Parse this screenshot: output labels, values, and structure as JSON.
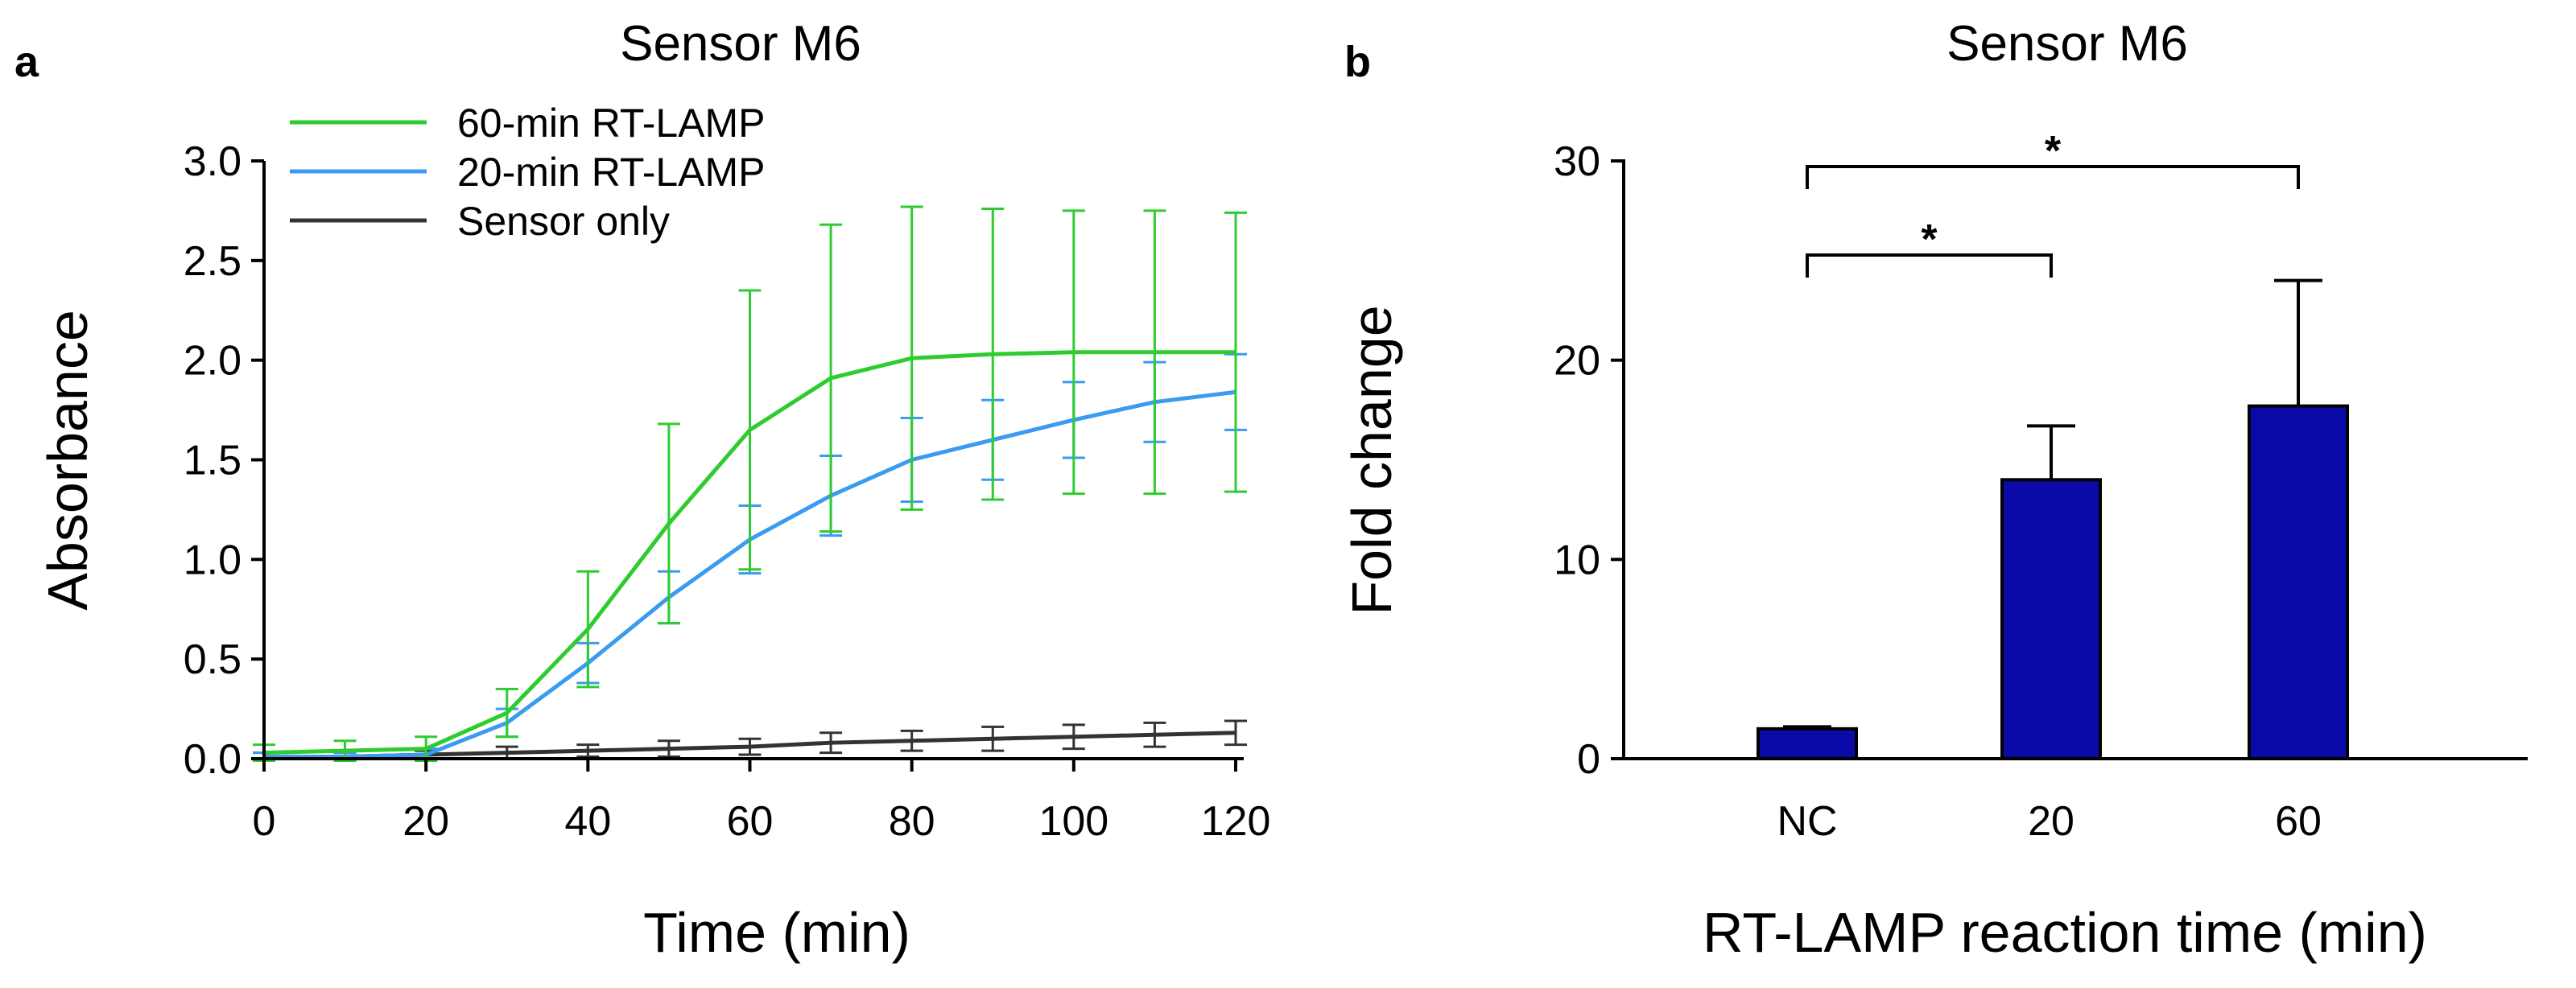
{
  "chart_data": [
    {
      "panel": "a",
      "type": "line",
      "title": "Sensor M6",
      "xlabel": "Time (min)",
      "ylabel": "Absorbance",
      "xlim": [
        0,
        120
      ],
      "ylim": [
        0,
        3.0
      ],
      "xticks": [
        "0",
        "20",
        "40",
        "60",
        "80",
        "100",
        "120"
      ],
      "yticks": [
        "0.0",
        "0.5",
        "1.0",
        "1.5",
        "2.0",
        "2.5",
        "3.0"
      ],
      "x": [
        0,
        10,
        20,
        30,
        40,
        50,
        60,
        70,
        80,
        90,
        100,
        110,
        120
      ],
      "series": [
        {
          "name": "60-min RT-LAMP",
          "color": "#2ecc2e",
          "values": [
            0.03,
            0.04,
            0.05,
            0.23,
            0.65,
            1.18,
            1.65,
            1.91,
            2.01,
            2.03,
            2.04,
            2.04,
            2.04
          ],
          "errors": [
            0.04,
            0.05,
            0.06,
            0.12,
            0.29,
            0.5,
            0.7,
            0.77,
            0.76,
            0.73,
            0.71,
            0.71,
            0.7
          ]
        },
        {
          "name": "20-min RT-LAMP",
          "color": "#3a9bf0",
          "values": [
            0.01,
            0.01,
            0.02,
            0.18,
            0.48,
            0.81,
            1.1,
            1.32,
            1.5,
            1.6,
            1.7,
            1.79,
            1.84
          ],
          "errors": [
            0.02,
            0.02,
            0.03,
            0.07,
            0.1,
            0.13,
            0.17,
            0.2,
            0.21,
            0.2,
            0.19,
            0.2,
            0.19
          ]
        },
        {
          "name": "Sensor only",
          "color": "#333333",
          "values": [
            0.01,
            0.01,
            0.02,
            0.03,
            0.04,
            0.05,
            0.06,
            0.08,
            0.09,
            0.1,
            0.11,
            0.12,
            0.13
          ],
          "errors": [
            0.02,
            0.02,
            0.02,
            0.03,
            0.03,
            0.04,
            0.04,
            0.05,
            0.05,
            0.06,
            0.06,
            0.06,
            0.06
          ]
        }
      ]
    },
    {
      "panel": "b",
      "type": "bar",
      "title": "Sensor M6",
      "xlabel": "RT-LAMP reaction time (min)",
      "ylabel": "Fold change",
      "ylim": [
        0,
        30
      ],
      "yticks": [
        "0",
        "10",
        "20",
        "30"
      ],
      "categories": [
        "NC",
        "20",
        "60"
      ],
      "values": [
        1.5,
        14.0,
        17.7
      ],
      "errors": [
        0.1,
        2.7,
        6.3
      ],
      "bar_color": "#0a0aa8",
      "significance": [
        {
          "from": "NC",
          "to": "20",
          "label": "*"
        },
        {
          "from": "NC",
          "to": "60",
          "label": "*"
        }
      ]
    }
  ]
}
